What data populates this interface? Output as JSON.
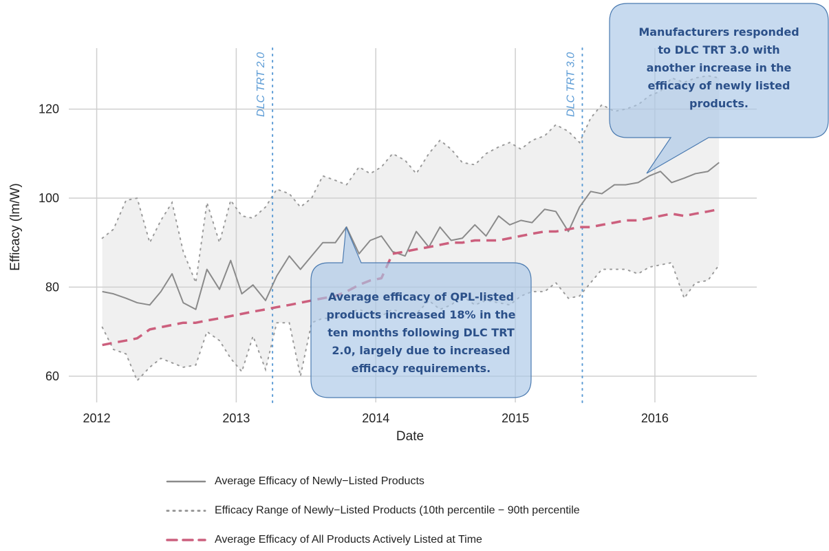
{
  "chart_data": {
    "type": "line",
    "xlabel": "Date",
    "ylabel": "Efficacy (lm/W)",
    "x": [
      2012.04,
      2012.12,
      2012.21,
      2012.29,
      2012.38,
      2012.46,
      2012.54,
      2012.62,
      2012.71,
      2012.79,
      2012.88,
      2012.96,
      2013.04,
      2013.12,
      2013.21,
      2013.29,
      2013.38,
      2013.46,
      2013.54,
      2013.62,
      2013.71,
      2013.79,
      2013.88,
      2013.96,
      2014.04,
      2014.12,
      2014.21,
      2014.29,
      2014.38,
      2014.46,
      2014.54,
      2014.62,
      2014.71,
      2014.79,
      2014.88,
      2014.96,
      2015.04,
      2015.12,
      2015.21,
      2015.29,
      2015.38,
      2015.46,
      2015.54,
      2015.62,
      2015.71,
      2015.79,
      2015.88,
      2015.96,
      2016.04,
      2016.12,
      2016.21,
      2016.29,
      2016.38,
      2016.46
    ],
    "series": [
      {
        "name": "Average Efficacy of Newly−Listed Products",
        "color": "#8a8a8a",
        "style": "solid",
        "values": [
          79,
          78.5,
          77.5,
          76.5,
          76,
          79,
          83,
          76.5,
          75,
          84,
          79.5,
          86,
          78.5,
          80.5,
          77,
          82.5,
          87,
          84,
          87,
          90,
          90,
          93.5,
          87.5,
          90.5,
          91.5,
          88,
          87,
          92.5,
          89,
          93.5,
          90.5,
          91,
          94,
          91.5,
          96,
          94,
          95,
          94.5,
          97.5,
          97,
          92.5,
          98,
          101.5,
          101,
          103,
          103,
          103.5,
          105,
          106,
          103.5,
          104.5,
          105.5,
          106,
          108
        ]
      },
      {
        "name": "Average Efficacy of All Products Actively Listed at Time",
        "color": "#cc5f7d",
        "style": "dashed",
        "values": [
          67,
          67.5,
          68,
          68.5,
          70.5,
          71,
          71.5,
          72,
          72,
          72.5,
          73,
          73.5,
          74,
          74.5,
          75,
          75.5,
          76,
          76.5,
          77,
          77.5,
          78,
          79,
          80.5,
          81.5,
          82,
          87.5,
          88,
          88.5,
          89,
          89.5,
          90,
          90,
          90.5,
          90.5,
          90.5,
          91,
          91.5,
          92,
          92.5,
          92.5,
          93,
          93.5,
          93.5,
          94,
          94.5,
          95,
          95,
          95.5,
          96,
          96.5,
          96,
          96.5,
          97,
          97.5
        ]
      }
    ],
    "band": {
      "name": "Efficacy Range of Newly−Listed Products (10th percentile − 90th percentile",
      "color": "#9a9a9a",
      "fill": "#f0f0f0",
      "upper": [
        91,
        93,
        99.5,
        100,
        90,
        95,
        99,
        88,
        81,
        99,
        90,
        99.5,
        96,
        95.5,
        98,
        102,
        101,
        98,
        100,
        105,
        104,
        103,
        107,
        105.5,
        107,
        110,
        108.5,
        105.5,
        110,
        113,
        111,
        108,
        107.5,
        110,
        111.5,
        112.5,
        111,
        113,
        114,
        116.5,
        115,
        112.5,
        118,
        121,
        119.5,
        120,
        121,
        123,
        124,
        127,
        126,
        127,
        127.5,
        127
      ],
      "lower": [
        71,
        66,
        65,
        59,
        62,
        64,
        63,
        62,
        62.5,
        70,
        68,
        64,
        61,
        69,
        61.5,
        72,
        72,
        60,
        72,
        73,
        73,
        74,
        75,
        74,
        73.5,
        75,
        74,
        74,
        77,
        75,
        76,
        78,
        76,
        77,
        76.5,
        76,
        78,
        79,
        79,
        81,
        77.5,
        78,
        81,
        84,
        84,
        84,
        83,
        84.5,
        85,
        85.5,
        77.5,
        81,
        81.5,
        85
      ]
    },
    "events": [
      {
        "label": "DLC TRT 2.0",
        "x": 2013.26
      },
      {
        "label": "DLC TRT 3.0",
        "x": 2015.48
      }
    ],
    "event_color": "#5b9bd5",
    "annotations": [
      {
        "lines": [
          "Average efficacy of QPL-listed",
          "products increased 18% in the",
          "ten months following DLC TRT",
          "2.0, largely due to increased",
          "efficacy requirements."
        ]
      },
      {
        "lines": [
          "Manufacturers responded",
          "to DLC TRT 3.0 with",
          "another increase in the",
          "efficacy of newly listed",
          "products."
        ]
      }
    ],
    "xlim": [
      2011.8,
      2016.73
    ],
    "xticks": [
      2012,
      2013,
      2014,
      2015,
      2016
    ],
    "ylim": [
      54.1,
      133.7
    ],
    "yticks": [
      60,
      80,
      100,
      120
    ],
    "grid": true,
    "legend": "bottom"
  }
}
